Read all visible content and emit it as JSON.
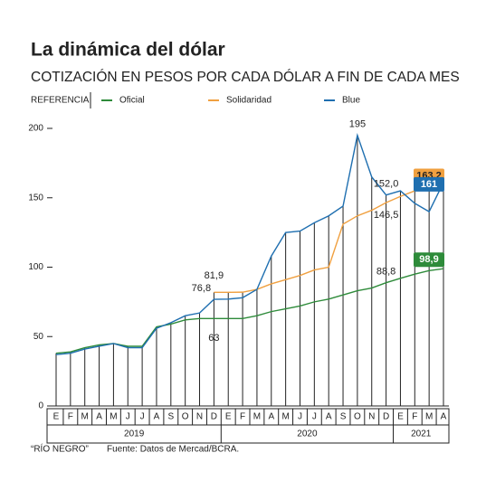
{
  "chart_data": {
    "type": "line",
    "title": "La dinámica del dólar",
    "subtitle": "COTIZACIÓN EN PESOS POR CADA DÓLAR A FIN DE CADA MES",
    "legend_title": "REFERENCIA",
    "groups": [
      {
        "label": "2019",
        "categories": [
          "E",
          "F",
          "M",
          "A",
          "M",
          "J",
          "J",
          "A",
          "S",
          "O",
          "N",
          "D"
        ]
      },
      {
        "label": "2020",
        "categories": [
          "E",
          "F",
          "M",
          "A",
          "M",
          "J",
          "J",
          "A",
          "S",
          "O",
          "N",
          "D"
        ]
      },
      {
        "label": "2021",
        "categories": [
          "E",
          "F",
          "M",
          "A"
        ]
      }
    ],
    "ylim": [
      0,
      200
    ],
    "yticks": [
      0,
      50,
      100,
      150,
      200
    ],
    "series": [
      {
        "name": "Oficial",
        "color": "#2e8b3a",
        "values": [
          38,
          39,
          42,
          44,
          45,
          43,
          43,
          57,
          59,
          62,
          63,
          63,
          63,
          63,
          65,
          68,
          70,
          72,
          75,
          77,
          80,
          83,
          85,
          88.8,
          92,
          95,
          97.5,
          98.9
        ],
        "value_labels": [
          null,
          null,
          null,
          null,
          null,
          null,
          null,
          null,
          null,
          null,
          null,
          "63",
          null,
          null,
          null,
          null,
          null,
          null,
          null,
          null,
          null,
          null,
          null,
          "88,8",
          null,
          null,
          null,
          "98,9"
        ]
      },
      {
        "name": "Solidaridad",
        "color": "#f0a040",
        "values": [
          null,
          null,
          null,
          null,
          null,
          null,
          null,
          null,
          null,
          null,
          null,
          81.9,
          81.9,
          82,
          84,
          88,
          91,
          94,
          98,
          100,
          131,
          137,
          141,
          146.5,
          151,
          155,
          160,
          163.2
        ],
        "value_labels": [
          null,
          null,
          null,
          null,
          null,
          null,
          null,
          null,
          null,
          null,
          null,
          "81,9",
          null,
          null,
          null,
          null,
          null,
          null,
          null,
          null,
          null,
          null,
          null,
          "146,5",
          null,
          null,
          null,
          "163,2"
        ]
      },
      {
        "name": "Blue",
        "color": "#1f6fb0",
        "values": [
          37,
          38,
          41,
          43,
          45,
          42,
          42,
          56,
          60,
          65,
          67,
          76.8,
          77,
          78,
          84,
          108,
          125,
          126,
          132,
          137,
          144,
          195,
          165,
          152,
          155,
          146,
          140,
          161
        ],
        "value_labels": [
          null,
          null,
          null,
          null,
          null,
          null,
          null,
          null,
          null,
          null,
          null,
          "76,8",
          null,
          null,
          null,
          null,
          null,
          null,
          null,
          null,
          null,
          "195",
          null,
          "152,0",
          null,
          null,
          null,
          "161"
        ]
      }
    ],
    "source_left": "“RÍO NEGRO”",
    "source": "Fuente: Datos de Mercad/BCRA."
  }
}
